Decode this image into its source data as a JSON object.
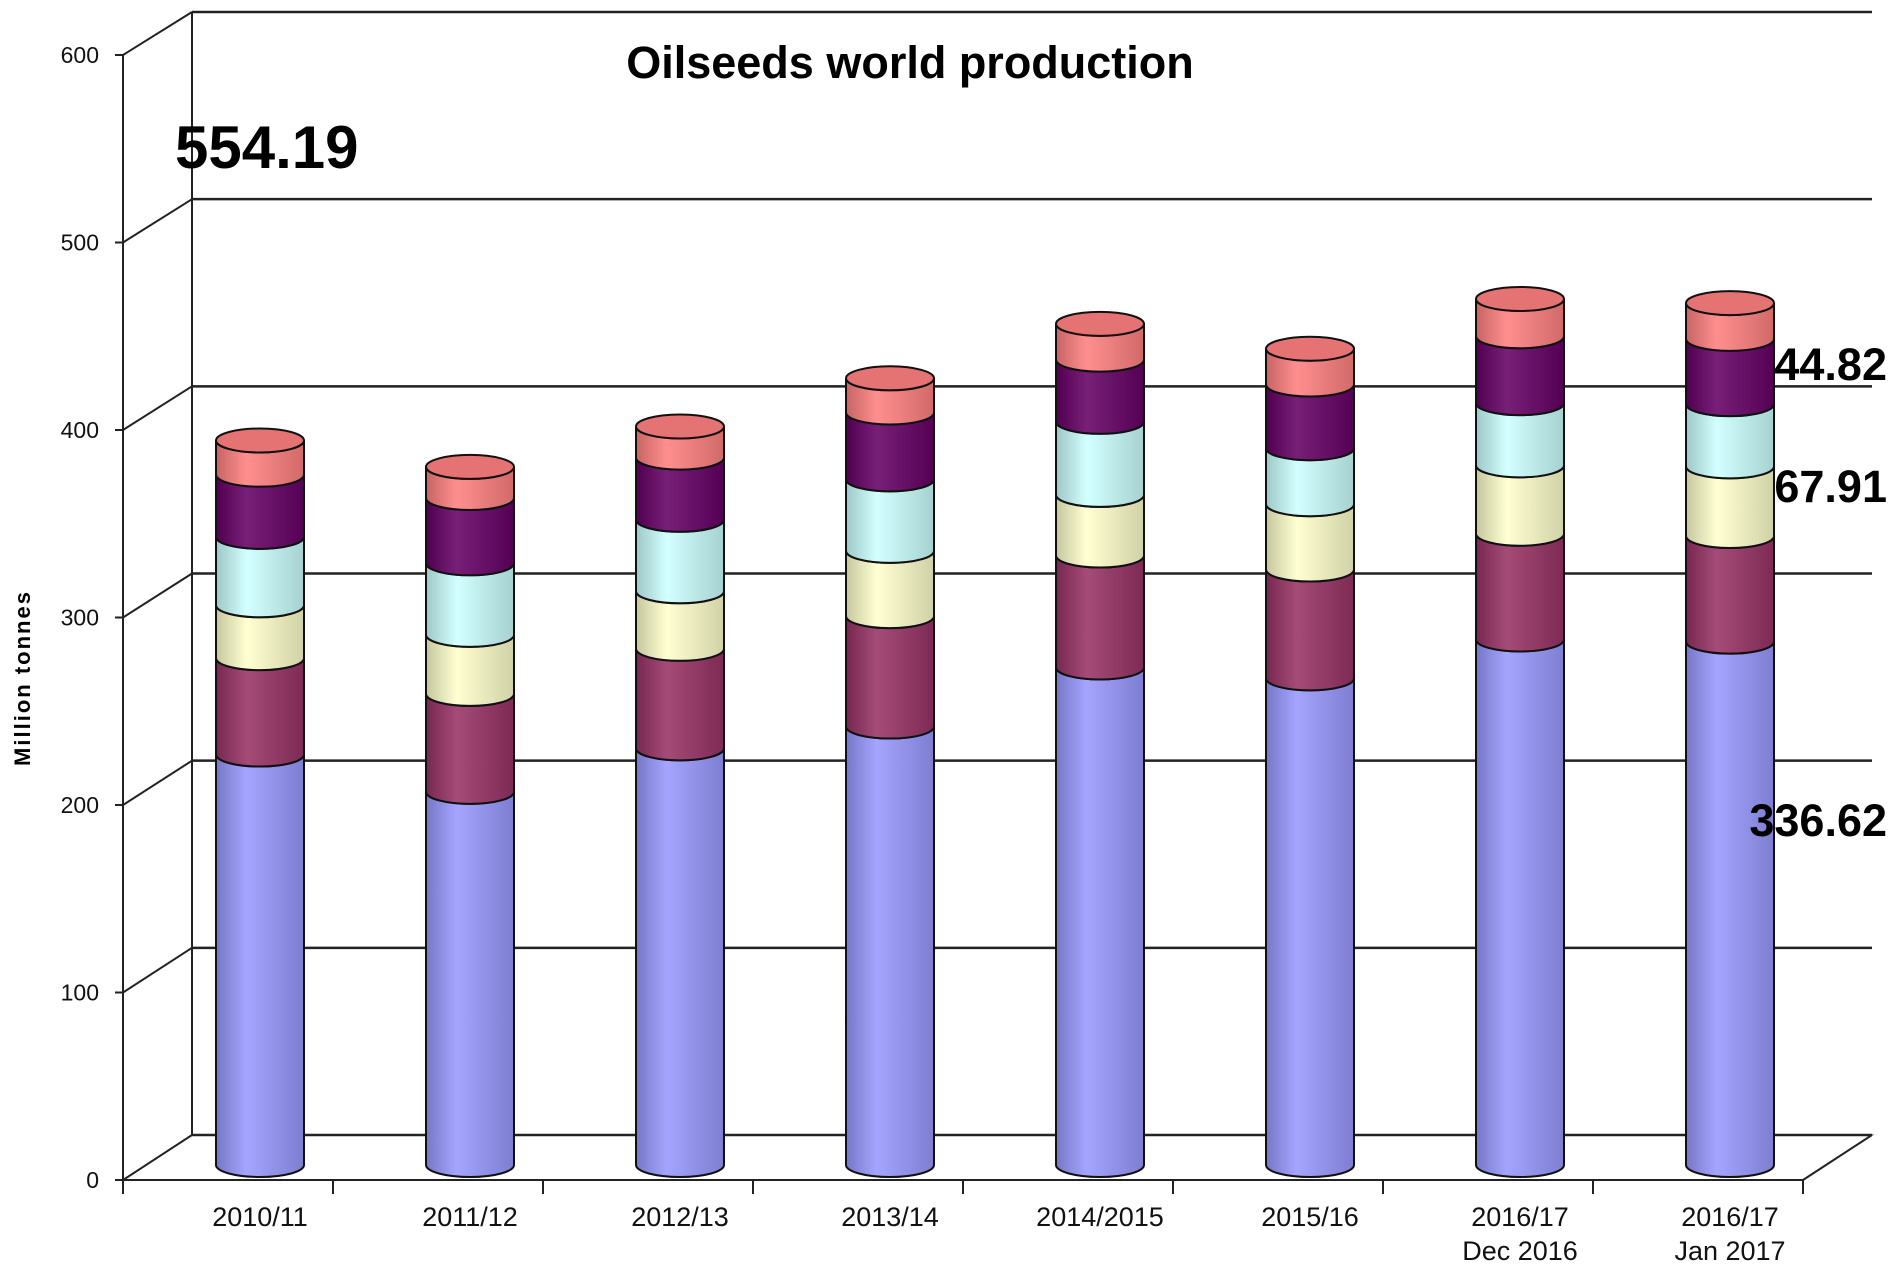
{
  "chart_data": {
    "type": "bar",
    "stacked": true,
    "style": "3d-cylinder",
    "title": "Oilseeds world production",
    "xlabel": "",
    "ylabel": "Million tonnes",
    "ylim": [
      0,
      600
    ],
    "yticks": [
      0,
      100,
      200,
      300,
      400,
      500,
      600
    ],
    "grid": true,
    "legend": "none",
    "categories": [
      [
        "2010/11"
      ],
      [
        "2011/12"
      ],
      [
        "2012/13"
      ],
      [
        "2013/14"
      ],
      [
        "2014/2015"
      ],
      [
        "2015/16"
      ],
      [
        "2016/17",
        "Dec 2016"
      ],
      [
        "2016/17",
        "Jan 2017"
      ]
    ],
    "series": [
      {
        "color": "#9999ff",
        "values": [
          264,
          240,
          268,
          282,
          320,
          313,
          338,
          336.62
        ]
      },
      {
        "color": "#993366",
        "values": [
          62,
          63,
          64,
          71,
          72,
          70,
          68,
          67.91
        ]
      },
      {
        "color": "#ffffcc",
        "values": [
          34,
          38,
          37,
          42,
          39,
          42,
          44,
          44.82
        ]
      },
      {
        "color": "#ccffff",
        "values": [
          44,
          46,
          46,
          46,
          47,
          36,
          40,
          40
        ]
      },
      {
        "color": "#660066",
        "values": [
          40,
          42,
          40,
          43,
          40,
          41,
          43,
          42
        ]
      },
      {
        "color": "#ff8080",
        "values": [
          22,
          20,
          20,
          22,
          23,
          23,
          24,
          23
        ]
      }
    ],
    "annotations": [
      {
        "text": "554.19"
      },
      {
        "text": "44.82"
      },
      {
        "text": "67.91"
      },
      {
        "text": "336.62"
      }
    ]
  }
}
